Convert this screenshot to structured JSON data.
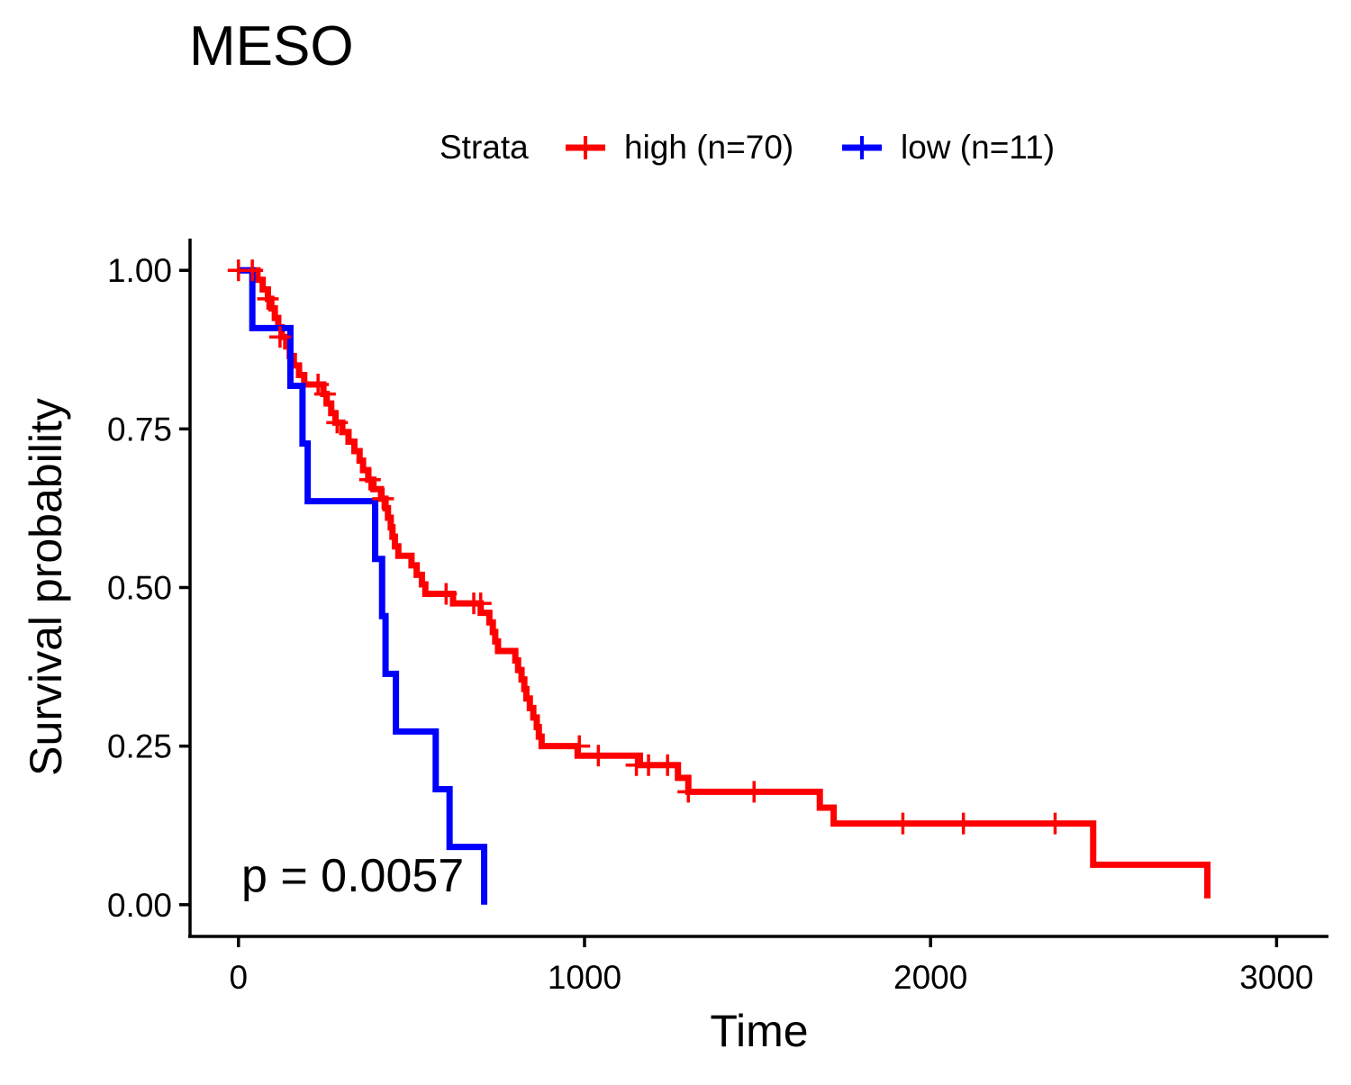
{
  "chart_data": {
    "type": "line",
    "subtype": "kaplan-meier",
    "title": "MESO",
    "xlabel": "Time",
    "ylabel": "Survival probability",
    "xlim": [
      -140,
      3150
    ],
    "ylim": [
      -0.05,
      1.05
    ],
    "x_ticks": [
      0,
      1000,
      2000,
      3000
    ],
    "x_tick_labels": [
      "0",
      "1000",
      "2000",
      "3000"
    ],
    "y_ticks": [
      0,
      0.25,
      0.5,
      0.75,
      1.0
    ],
    "y_tick_labels": [
      "0.00",
      "0.25",
      "0.50",
      "0.75",
      "1.00"
    ],
    "grid": false,
    "legend": {
      "title": "Strata",
      "position": "top",
      "entries": [
        "high (n=70)",
        "low (n=11)"
      ]
    },
    "annotation": "p = 0.0057",
    "series": [
      {
        "name": "high (n=70)",
        "color": "#ff0000",
        "steps": [
          [
            0,
            1.0
          ],
          [
            55,
            0.985
          ],
          [
            70,
            0.97
          ],
          [
            85,
            0.955
          ],
          [
            95,
            0.94
          ],
          [
            105,
            0.925
          ],
          [
            115,
            0.91
          ],
          [
            125,
            0.895
          ],
          [
            138,
            0.88
          ],
          [
            148,
            0.865
          ],
          [
            160,
            0.85
          ],
          [
            175,
            0.835
          ],
          [
            190,
            0.82
          ],
          [
            245,
            0.805
          ],
          [
            255,
            0.79
          ],
          [
            268,
            0.775
          ],
          [
            280,
            0.76
          ],
          [
            300,
            0.745
          ],
          [
            318,
            0.73
          ],
          [
            335,
            0.715
          ],
          [
            350,
            0.7
          ],
          [
            360,
            0.685
          ],
          [
            375,
            0.67
          ],
          [
            390,
            0.655
          ],
          [
            412,
            0.64
          ],
          [
            425,
            0.625
          ],
          [
            432,
            0.61
          ],
          [
            440,
            0.595
          ],
          [
            445,
            0.58
          ],
          [
            452,
            0.565
          ],
          [
            462,
            0.55
          ],
          [
            500,
            0.535
          ],
          [
            515,
            0.52
          ],
          [
            530,
            0.505
          ],
          [
            540,
            0.49
          ],
          [
            620,
            0.475
          ],
          [
            700,
            0.46
          ],
          [
            725,
            0.445
          ],
          [
            735,
            0.43
          ],
          [
            742,
            0.415
          ],
          [
            750,
            0.4
          ],
          [
            800,
            0.385
          ],
          [
            808,
            0.37
          ],
          [
            818,
            0.355
          ],
          [
            826,
            0.34
          ],
          [
            832,
            0.325
          ],
          [
            842,
            0.31
          ],
          [
            852,
            0.295
          ],
          [
            862,
            0.28
          ],
          [
            868,
            0.265
          ],
          [
            876,
            0.25
          ],
          [
            980,
            0.235
          ],
          [
            1160,
            0.22
          ],
          [
            1270,
            0.2
          ],
          [
            1300,
            0.178
          ],
          [
            1680,
            0.153
          ],
          [
            1720,
            0.128
          ],
          [
            2470,
            0.063
          ],
          [
            2800,
            0.01
          ]
        ],
        "end_x": 2800,
        "censor_points": [
          [
            0,
            1.0
          ],
          [
            40,
            1.0
          ],
          [
            85,
            0.955
          ],
          [
            120,
            0.895
          ],
          [
            230,
            0.82
          ],
          [
            250,
            0.805
          ],
          [
            285,
            0.76
          ],
          [
            380,
            0.67
          ],
          [
            418,
            0.64
          ],
          [
            600,
            0.49
          ],
          [
            680,
            0.475
          ],
          [
            700,
            0.475
          ],
          [
            985,
            0.25
          ],
          [
            1040,
            0.235
          ],
          [
            1150,
            0.22
          ],
          [
            1185,
            0.22
          ],
          [
            1240,
            0.22
          ],
          [
            1300,
            0.178
          ],
          [
            1490,
            0.178
          ],
          [
            1920,
            0.128
          ],
          [
            2095,
            0.128
          ],
          [
            2360,
            0.128
          ]
        ]
      },
      {
        "name": "low (n=11)",
        "color": "#0000ff",
        "steps": [
          [
            0,
            1.0
          ],
          [
            40,
            0.909
          ],
          [
            150,
            0.818
          ],
          [
            185,
            0.727
          ],
          [
            200,
            0.636
          ],
          [
            395,
            0.545
          ],
          [
            415,
            0.455
          ],
          [
            425,
            0.364
          ],
          [
            455,
            0.273
          ],
          [
            570,
            0.182
          ],
          [
            610,
            0.091
          ],
          [
            710,
            0.0
          ]
        ],
        "end_x": 710,
        "censor_points": []
      }
    ]
  }
}
